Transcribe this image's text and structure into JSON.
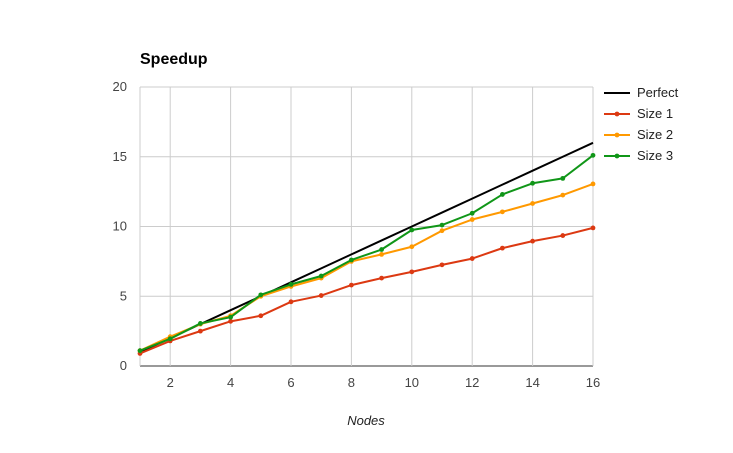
{
  "chart_data": {
    "type": "line",
    "title": "Speedup",
    "xlabel": "Nodes",
    "ylabel": "",
    "xlim": [
      1,
      16
    ],
    "ylim": [
      0,
      20
    ],
    "x_ticks": [
      2,
      4,
      6,
      8,
      10,
      12,
      14,
      16
    ],
    "y_ticks": [
      0,
      5,
      10,
      15,
      20
    ],
    "grid": true,
    "legend_position": "right",
    "x": [
      1,
      2,
      3,
      4,
      5,
      6,
      7,
      8,
      9,
      10,
      11,
      12,
      13,
      14,
      15,
      16
    ],
    "series": [
      {
        "name": "Perfect",
        "color": "#000000",
        "markers": false,
        "values": [
          1,
          2,
          3,
          4,
          5,
          6,
          7,
          8,
          9,
          10,
          11,
          12,
          13,
          14,
          15,
          16
        ]
      },
      {
        "name": "Size 1",
        "color": "#dc3912",
        "markers": true,
        "values": [
          0.9,
          1.8,
          2.5,
          3.2,
          3.6,
          4.6,
          5.05,
          5.8,
          6.3,
          6.75,
          7.25,
          7.7,
          8.45,
          8.95,
          9.35,
          9.9
        ]
      },
      {
        "name": "Size 2",
        "color": "#ff9900",
        "markers": true,
        "values": [
          1.1,
          2.1,
          3.0,
          3.6,
          5.0,
          5.7,
          6.3,
          7.5,
          8.0,
          8.55,
          9.7,
          10.5,
          11.05,
          11.65,
          12.25,
          13.05
        ]
      },
      {
        "name": "Size 3",
        "color": "#109618",
        "markers": true,
        "values": [
          1.1,
          1.95,
          3.05,
          3.5,
          5.1,
          5.85,
          6.45,
          7.6,
          8.35,
          9.75,
          10.1,
          10.95,
          12.3,
          13.1,
          13.45,
          15.1
        ]
      }
    ]
  }
}
